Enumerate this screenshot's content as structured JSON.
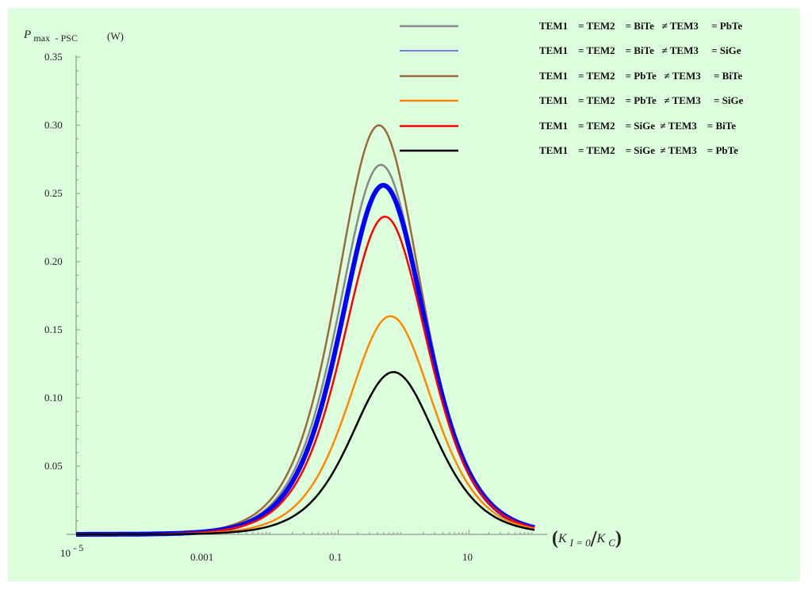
{
  "chart_data": {
    "type": "line",
    "title": "",
    "ylabel": "P max - PSC (W)",
    "ylabel_parts": {
      "main": "P",
      "sub1": "max",
      "dash": "-",
      "sub2": "PSC",
      "unit": "(W)"
    },
    "xlabel": "(K I=0 / K C)",
    "xlabel_parts": {
      "open": "(",
      "k1": "K",
      "sub1": "I = 0",
      "slash": "/",
      "k2": "K",
      "sub2": "C",
      "close": ")"
    },
    "xscale": "log",
    "xlim": [
      1e-05,
      100
    ],
    "ylim": [
      0,
      0.35
    ],
    "x_ticks": [
      {
        "value": 1e-05,
        "label": "10",
        "sup": "- 5"
      },
      {
        "value": 0.001,
        "label": "0.001"
      },
      {
        "value": 0.1,
        "label": "0.1"
      },
      {
        "value": 10,
        "label": "10"
      }
    ],
    "y_ticks": [
      "0.05",
      "0.10",
      "0.15",
      "0.20",
      "0.25",
      "0.30",
      "0.35"
    ],
    "grid": false,
    "legend_position": "top-right",
    "series": [
      {
        "name": "TEM1 = TEM2 = BiTe ≠ TEM3 = PbTe",
        "color": "#888888",
        "width": 2.5,
        "peak_x": 0.45,
        "peak_y": 0.271
      },
      {
        "name": "TEM1 = TEM2 = BiTe ≠ TEM3 = SiGe",
        "color": "#0000ff",
        "width": 6,
        "legend_color": "#4a5fe0",
        "legend_width": 1.5,
        "peak_x": 0.49,
        "peak_y": 0.256
      },
      {
        "name": "TEM1 = TEM2 = PbTe ≠ TEM3 = BiTe",
        "color": "#9b6a3a",
        "width": 2.5,
        "peak_x": 0.42,
        "peak_y": 0.3
      },
      {
        "name": "TEM1 = TEM2 = PbTe ≠ TEM3 = SiGe",
        "color": "#ff8800",
        "width": 2.5,
        "peak_x": 0.63,
        "peak_y": 0.16
      },
      {
        "name": "TEM1 = TEM2 = SiGe ≠ TEM3 = BiTe",
        "color": "#ff0000",
        "width": 2.5,
        "peak_x": 0.52,
        "peak_y": 0.233
      },
      {
        "name": "TEM1 = TEM2 = SiGe ≠ TEM3 = PbTe",
        "color": "#000000",
        "width": 2.5,
        "peak_x": 0.7,
        "peak_y": 0.119
      }
    ]
  },
  "legend": [
    "TEM1    = TEM2    = BiTe   ≠ TEM3     = PbTe",
    "TEM1    = TEM2    = BiTe   ≠ TEM3     = SiGe",
    "TEM1    = TEM2    = PbTe   ≠ TEM3     = BiTe",
    "TEM1    = TEM2    = PbTe   ≠ TEM3     = SiGe",
    "TEM1    = TEM2    = SiGe  ≠ TEM3    = BiTe",
    "TEM1    = TEM2    = SiGe  ≠ TEM3    = PbTe"
  ],
  "colors": {
    "background": "#ddfedd",
    "axis": "#8a9a8a"
  }
}
